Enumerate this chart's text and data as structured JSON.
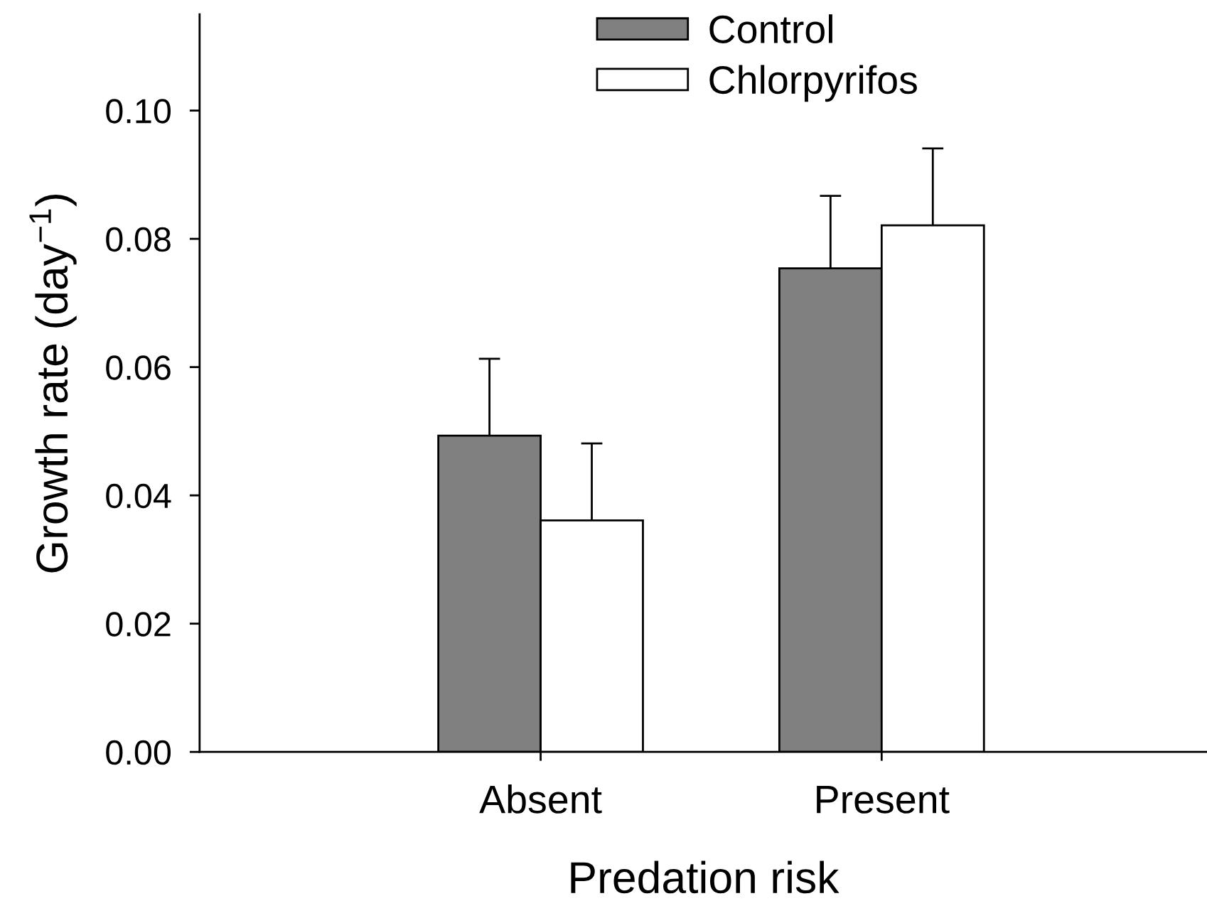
{
  "chart_data": {
    "type": "bar",
    "xlabel": "Predation risk",
    "ylabel": "Growth rate (day$^{−1}$)",
    "categories": [
      "Absent",
      "Present"
    ],
    "series": [
      {
        "name": "Control",
        "color": "#808080",
        "values": [
          0.0493,
          0.0754
        ],
        "errors": [
          [
            0.0493,
            0.0613
          ],
          [
            0.0754,
            0.0867
          ]
        ]
      },
      {
        "name": "Chlorpyrifos",
        "color": "#ffffff",
        "values": [
          0.0361,
          0.0821
        ],
        "errors": [
          [
            0.0361,
            0.0481
          ],
          [
            0.0821,
            0.0941
          ]
        ]
      }
    ],
    "ylim": [
      0,
      0.115
    ],
    "yticks": [
      {
        "value": 0,
        "label": "0.00"
      },
      0.02,
      0.04,
      0.06,
      0.08,
      {
        "value": 0.1,
        "label": "0.10"
      }
    ],
    "legend": "top",
    "grid": false
  }
}
